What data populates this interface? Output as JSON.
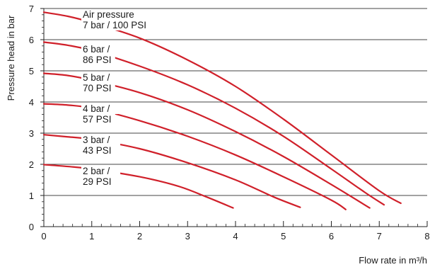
{
  "chart_data": {
    "type": "line",
    "title": "",
    "xlabel": "Flow rate in m³/h",
    "ylabel": "Pressure head in bar",
    "xlim": [
      0,
      8
    ],
    "ylim": [
      0,
      7
    ],
    "x_ticks": [
      "0",
      "1",
      "2",
      "3",
      "4",
      "5",
      "6",
      "7",
      "8"
    ],
    "y_ticks": [
      "0",
      "1",
      "2",
      "3",
      "4",
      "5",
      "6",
      "7"
    ],
    "grid": "horizontal",
    "line_color": "#d0202a",
    "series": [
      {
        "name": "Air pressure 7 bar / 100 PSI",
        "label_lines": [
          "Air pressure",
          "7 bar / 100 PSI"
        ],
        "points": [
          [
            0,
            6.88
          ],
          [
            0.5,
            6.75
          ],
          [
            1,
            6.55
          ],
          [
            2,
            6.05
          ],
          [
            3,
            5.35
          ],
          [
            4,
            4.5
          ],
          [
            5,
            3.45
          ],
          [
            6,
            2.3
          ],
          [
            7,
            1.15
          ],
          [
            7.45,
            0.75
          ]
        ]
      },
      {
        "name": "6 bar / 86 PSI",
        "label_lines": [
          "6 bar /",
          "86 PSI"
        ],
        "points": [
          [
            0,
            5.92
          ],
          [
            0.5,
            5.82
          ],
          [
            1,
            5.65
          ],
          [
            2,
            5.15
          ],
          [
            3,
            4.55
          ],
          [
            4,
            3.8
          ],
          [
            5,
            2.9
          ],
          [
            6,
            1.85
          ],
          [
            6.7,
            1.1
          ],
          [
            7.1,
            0.7
          ]
        ]
      },
      {
        "name": "5 bar / 70 PSI",
        "label_lines": [
          "5 bar /",
          "70 PSI"
        ],
        "points": [
          [
            0,
            4.92
          ],
          [
            0.5,
            4.85
          ],
          [
            1,
            4.7
          ],
          [
            2,
            4.3
          ],
          [
            3,
            3.75
          ],
          [
            4,
            3.05
          ],
          [
            5,
            2.25
          ],
          [
            6,
            1.35
          ],
          [
            6.8,
            0.6
          ]
        ]
      },
      {
        "name": "4 bar / 57 PSI",
        "label_lines": [
          "4 bar /",
          "57 PSI"
        ],
        "points": [
          [
            0,
            3.94
          ],
          [
            0.5,
            3.9
          ],
          [
            1,
            3.8
          ],
          [
            2,
            3.4
          ],
          [
            3,
            2.9
          ],
          [
            4,
            2.3
          ],
          [
            5,
            1.6
          ],
          [
            6,
            0.85
          ],
          [
            6.3,
            0.55
          ]
        ]
      },
      {
        "name": "3 bar / 43 PSI",
        "label_lines": [
          "3 bar /",
          "43 PSI"
        ],
        "points": [
          [
            0,
            2.95
          ],
          [
            0.5,
            2.88
          ],
          [
            1,
            2.8
          ],
          [
            2,
            2.5
          ],
          [
            3,
            2.05
          ],
          [
            4,
            1.5
          ],
          [
            4.8,
            0.95
          ],
          [
            5.35,
            0.62
          ]
        ]
      },
      {
        "name": "2 bar / 29 PSI",
        "label_lines": [
          "2 bar /",
          "29 PSI"
        ],
        "points": [
          [
            0,
            1.99
          ],
          [
            0.5,
            1.93
          ],
          [
            1,
            1.85
          ],
          [
            2,
            1.6
          ],
          [
            2.8,
            1.3
          ],
          [
            3.4,
            0.95
          ],
          [
            3.95,
            0.6
          ]
        ]
      }
    ]
  }
}
